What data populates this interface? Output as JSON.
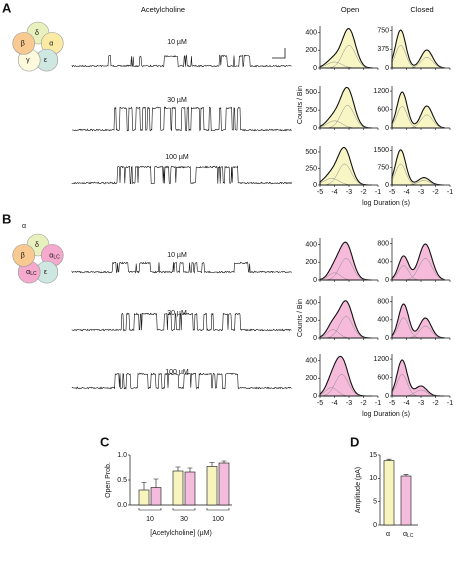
{
  "panels": {
    "A": {
      "label": "A",
      "subunits": [
        {
          "base": "δ"
        },
        {
          "base": "α"
        },
        {
          "base": "ε"
        },
        {
          "base": "γ"
        },
        {
          "base": "β"
        }
      ],
      "heading": "Acetylcholine",
      "traces": [
        "10 µM",
        "30 µM",
        "100 µM"
      ],
      "col_open": "Open",
      "col_closed": "Closed",
      "hist_ylabel": "Counts / Bin",
      "hist_xlabel": "log Duration (s)",
      "xlim": [
        -5,
        -1
      ],
      "xticks": [
        -5,
        -4,
        -3,
        -2,
        -1
      ],
      "open": [
        {
          "ylim": [
            0,
            450
          ],
          "yticks": [
            0,
            200,
            400
          ]
        },
        {
          "ylim": [
            0,
            560
          ],
          "yticks": [
            0,
            250,
            500
          ]
        },
        {
          "ylim": [
            0,
            560
          ],
          "yticks": [
            0,
            250,
            500
          ]
        }
      ],
      "closed": [
        {
          "ylim": [
            0,
            800
          ],
          "yticks": [
            0,
            375,
            750
          ]
        },
        {
          "ylim": [
            0,
            1300
          ],
          "yticks": [
            0,
            600,
            1200
          ]
        },
        {
          "ylim": [
            0,
            1600
          ],
          "yticks": [
            0,
            750,
            1500
          ]
        }
      ]
    },
    "B": {
      "label": "B",
      "alpha_label": "α",
      "subunits": [
        {
          "base": "δ"
        },
        {
          "base": "α",
          "sub": "LC"
        },
        {
          "base": "ε"
        },
        {
          "base": "α",
          "sub": "LC"
        },
        {
          "base": "β"
        }
      ],
      "traces": [
        "10 µM",
        "30 µM",
        "100 µM"
      ],
      "hist_ylabel": "Counts / Bin",
      "hist_xlabel": "log Duration (s)",
      "xlim": [
        -5,
        -1
      ],
      "xticks": [
        -5,
        -4,
        -3,
        -2,
        -1
      ],
      "open": [
        {
          "ylim": [
            0,
            450
          ],
          "yticks": [
            0,
            200,
            400
          ]
        },
        {
          "ylim": [
            0,
            450
          ],
          "yticks": [
            0,
            200,
            400
          ]
        },
        {
          "ylim": [
            0,
            450
          ],
          "yticks": [
            0,
            200,
            400
          ]
        }
      ],
      "closed": [
        {
          "ylim": [
            0,
            880
          ],
          "yticks": [
            0,
            400,
            800
          ]
        },
        {
          "ylim": [
            0,
            880
          ],
          "yticks": [
            0,
            400,
            800
          ]
        },
        {
          "ylim": [
            0,
            1300
          ],
          "yticks": [
            0,
            600,
            1200
          ]
        }
      ]
    }
  },
  "chart_data": [
    {
      "type": "bar",
      "panel": "C",
      "ylabel": "Open Prob.",
      "xlabel": "[Acetylcholine] (µM)",
      "categories": [
        "10",
        "30",
        "100"
      ],
      "ylim": [
        0,
        1.0
      ],
      "yticks": [
        {
          "value": 0,
          "label": "0.0"
        },
        0.5,
        {
          "value": 1.0,
          "label": "1.0"
        }
      ],
      "series": [
        {
          "color": "#f8f4bd",
          "values": [
            0.3,
            0.68,
            0.77
          ],
          "errors": [
            0.15,
            0.08,
            0.08
          ]
        },
        {
          "color": "#f4bcdc",
          "values": [
            0.35,
            0.66,
            0.84
          ],
          "errors": [
            0.17,
            0.08,
            0.04
          ]
        }
      ]
    },
    {
      "type": "bar",
      "panel": "D",
      "ylabel": "Amplitude (pA)",
      "categories": [
        {
          "base": "α"
        },
        {
          "base": "α",
          "sub": "LC"
        }
      ],
      "ylim": [
        0,
        15
      ],
      "yticks": [
        0,
        5,
        10,
        15
      ],
      "colors": [
        "#f8f4bd",
        "#f4bcdc"
      ],
      "values": [
        13.8,
        10.5
      ],
      "errors": [
        0.3,
        0.3
      ]
    }
  ]
}
